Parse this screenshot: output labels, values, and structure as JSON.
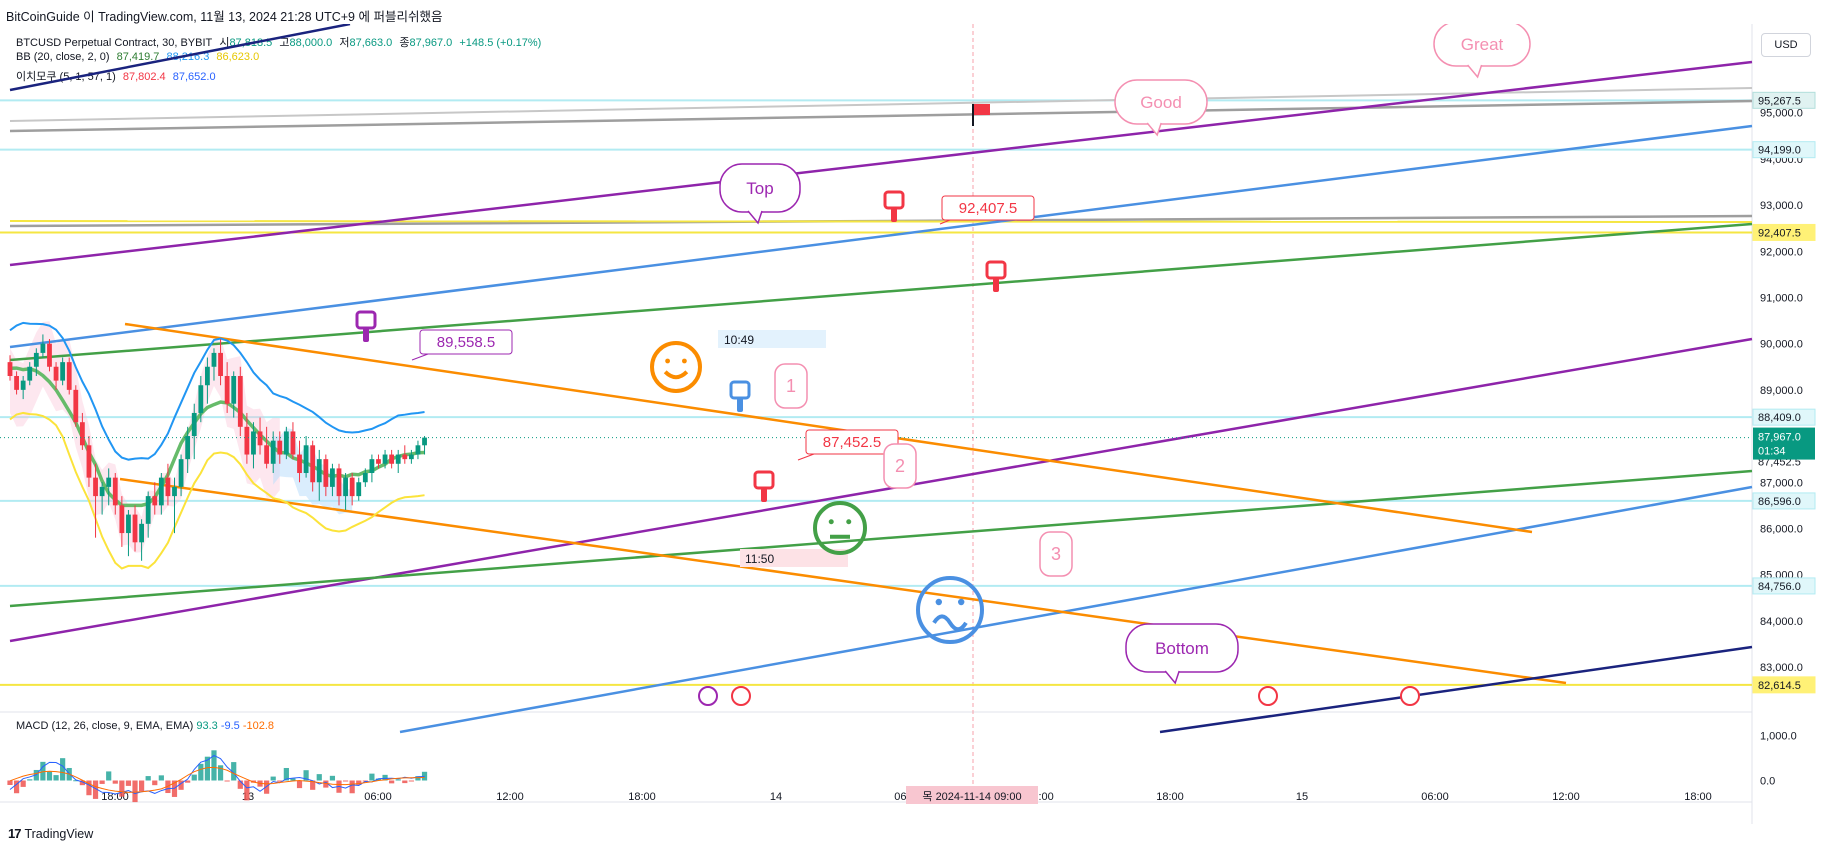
{
  "header": {
    "publisher_line": "BitCoinGuide 이 TradingView.com, 11월 13, 2024 21:28 UTC+9 에 퍼블리쉬했음",
    "symbol_line": "BTCUSD Perpetual Contract, 30, BYBIT",
    "open_label": "시",
    "open_value": "87,818.5",
    "high_label": "고",
    "high_value": "88,000.0",
    "low_label": "저",
    "low_value": "87,663.0",
    "close_label": "종",
    "close_value": "87,967.0",
    "change": "+148.5 (+0.17%)",
    "bb_label": "BB (20, close, 2, 0)",
    "bb_values": [
      "87,419.7",
      "88,216.3",
      "86,623.0"
    ],
    "ichimoku_label": "이치모쿠 (5, 1, 57, 1)",
    "ichimoku_values": [
      "87,802.4",
      "87,652.0"
    ],
    "macd_label": "MACD (12, 26, close, 9, EMA, EMA)",
    "macd_values": [
      "93.3",
      "-9.5",
      "-102.8"
    ],
    "currency_button": "USD"
  },
  "footer": {
    "brand": "TradingView",
    "logo_glyph": "17"
  },
  "chart_data": {
    "type": "candlestick",
    "symbol": "BTCUSD",
    "timeframe": "30",
    "exchange": "BYBIT",
    "ylim": [
      82200,
      96400
    ],
    "y_ticks": [
      83000,
      84000,
      85000,
      86000,
      87000,
      88000,
      89000,
      90000,
      91000,
      92000,
      93000,
      94000,
      95000
    ],
    "y_tick_labels": [
      "83,000.0",
      "84,000.0",
      "85,000.0",
      "86,000.0",
      "87,000.0",
      "88,000.0",
      "89,000.0",
      "90,000.0",
      "91,000.0",
      "92,000.0",
      "93,000.0",
      "94,000.0",
      "95,000.0"
    ],
    "x_tick_labels": [
      "18:00",
      "13",
      "06:00",
      "12:00",
      "18:00",
      "14",
      "06:00",
      "12:00",
      "18:00",
      "15",
      "06:00",
      "12:00",
      "18:00"
    ],
    "last_price_tag": {
      "price": "87,967.0",
      "countdown": "01:34"
    },
    "price_level_tags": [
      {
        "label": "95,267.5",
        "value": 95267.5,
        "color": "#e0f2f1",
        "border": "#b2dfdb"
      },
      {
        "label": "94,199.0",
        "value": 94199,
        "color": "#e0f7fa",
        "border": "#b2ebf2"
      },
      {
        "label": "92,407.5",
        "value": 92407.5,
        "color": "#fff176",
        "border": "#fff176"
      },
      {
        "label": "88,409.0",
        "value": 88409,
        "color": "#e0f7fa",
        "border": "#b2ebf2"
      },
      {
        "label": "87,452.5",
        "value": 87452.5,
        "color": "#ffffff",
        "border": "#ffffff"
      },
      {
        "label": "86,596.0",
        "value": 86596,
        "color": "#e0f7fa",
        "border": "#b2ebf2"
      },
      {
        "label": "84,756.0",
        "value": 84756,
        "color": "#e0f7fa",
        "border": "#b2ebf2"
      },
      {
        "label": "82,614.5",
        "value": 82614.5,
        "color": "#fff176",
        "border": "#fff176"
      }
    ],
    "annotations": {
      "price_labels": [
        "89,558.5",
        "92,407.5",
        "87,452.5"
      ],
      "time_labels": [
        "10:49",
        "11:50"
      ],
      "bubbles": [
        "Top",
        "Good",
        "Great",
        "Bottom"
      ],
      "numbers": [
        "1",
        "2",
        "3"
      ],
      "crosshair_time": "목 2024-11-14  09:00"
    },
    "candles": [
      [
        89600,
        89750,
        89200,
        89300
      ],
      [
        89300,
        89400,
        88900,
        89000
      ],
      [
        89000,
        89300,
        88800,
        89200
      ],
      [
        89200,
        89600,
        89100,
        89500
      ],
      [
        89500,
        89900,
        89300,
        89800
      ],
      [
        89800,
        90200,
        89700,
        90000
      ],
      [
        90000,
        90100,
        89400,
        89500
      ],
      [
        89500,
        89600,
        89000,
        89200
      ],
      [
        89200,
        89700,
        89100,
        89600
      ],
      [
        89600,
        89700,
        88900,
        89000
      ],
      [
        89000,
        89100,
        88200,
        88300
      ],
      [
        88300,
        88500,
        87700,
        87800
      ],
      [
        87800,
        88000,
        86900,
        87100
      ],
      [
        87100,
        87400,
        85800,
        86700
      ],
      [
        86700,
        87000,
        86300,
        86900
      ],
      [
        86900,
        87300,
        86500,
        87100
      ],
      [
        87100,
        87200,
        86300,
        86500
      ],
      [
        86500,
        86700,
        85600,
        85900
      ],
      [
        85900,
        86400,
        85400,
        86300
      ],
      [
        86300,
        86500,
        85500,
        85700
      ],
      [
        85700,
        86200,
        85300,
        86100
      ],
      [
        86100,
        86800,
        85800,
        86700
      ],
      [
        86700,
        87000,
        86300,
        86500
      ],
      [
        86500,
        87200,
        86300,
        87100
      ],
      [
        87100,
        87400,
        86500,
        86700
      ],
      [
        86700,
        87100,
        85900,
        86900
      ],
      [
        86900,
        87600,
        86700,
        87500
      ],
      [
        87500,
        88200,
        87200,
        88000
      ],
      [
        88000,
        88700,
        87500,
        88500
      ],
      [
        88500,
        89300,
        88300,
        89100
      ],
      [
        89100,
        89700,
        88700,
        89500
      ],
      [
        89500,
        89900,
        89200,
        89800
      ],
      [
        89800,
        90100,
        89100,
        89300
      ],
      [
        89300,
        89600,
        88500,
        88700
      ],
      [
        88700,
        89400,
        88400,
        89300
      ],
      [
        89300,
        89500,
        88000,
        88200
      ],
      [
        88200,
        88500,
        87400,
        87600
      ],
      [
        87600,
        88300,
        87300,
        88100
      ],
      [
        88100,
        88400,
        87600,
        87800
      ],
      [
        87800,
        88200,
        87300,
        87400
      ],
      [
        87400,
        88100,
        87200,
        87900
      ],
      [
        87900,
        88100,
        87400,
        87600
      ],
      [
        87600,
        88200,
        87500,
        88100
      ],
      [
        88100,
        88300,
        87500,
        87600
      ],
      [
        87600,
        87900,
        87000,
        87200
      ],
      [
        87200,
        88000,
        87100,
        87800
      ],
      [
        87800,
        87900,
        86800,
        87000
      ],
      [
        87000,
        87700,
        86600,
        87500
      ],
      [
        87500,
        87600,
        86700,
        86900
      ],
      [
        86900,
        87400,
        86700,
        87300
      ],
      [
        87300,
        87400,
        86500,
        86700
      ],
      [
        86700,
        87200,
        86400,
        87100
      ],
      [
        87100,
        87200,
        86500,
        86700
      ],
      [
        86700,
        87100,
        86600,
        87000
      ],
      [
        87000,
        87300,
        86900,
        87200
      ],
      [
        87200,
        87600,
        87000,
        87500
      ],
      [
        87500,
        87600,
        87300,
        87400
      ],
      [
        87400,
        87700,
        87300,
        87600
      ],
      [
        87600,
        87700,
        87300,
        87400
      ],
      [
        87400,
        87700,
        87200,
        87600
      ],
      [
        87600,
        87800,
        87400,
        87500
      ],
      [
        87500,
        87700,
        87400,
        87600
      ],
      [
        87600,
        87900,
        87500,
        87800
      ],
      [
        87800,
        88000,
        87600,
        87967
      ]
    ],
    "macd": {
      "ylim": [
        -300,
        1300
      ],
      "y_ticks": [
        "1,000.0",
        "0.0"
      ]
    }
  }
}
